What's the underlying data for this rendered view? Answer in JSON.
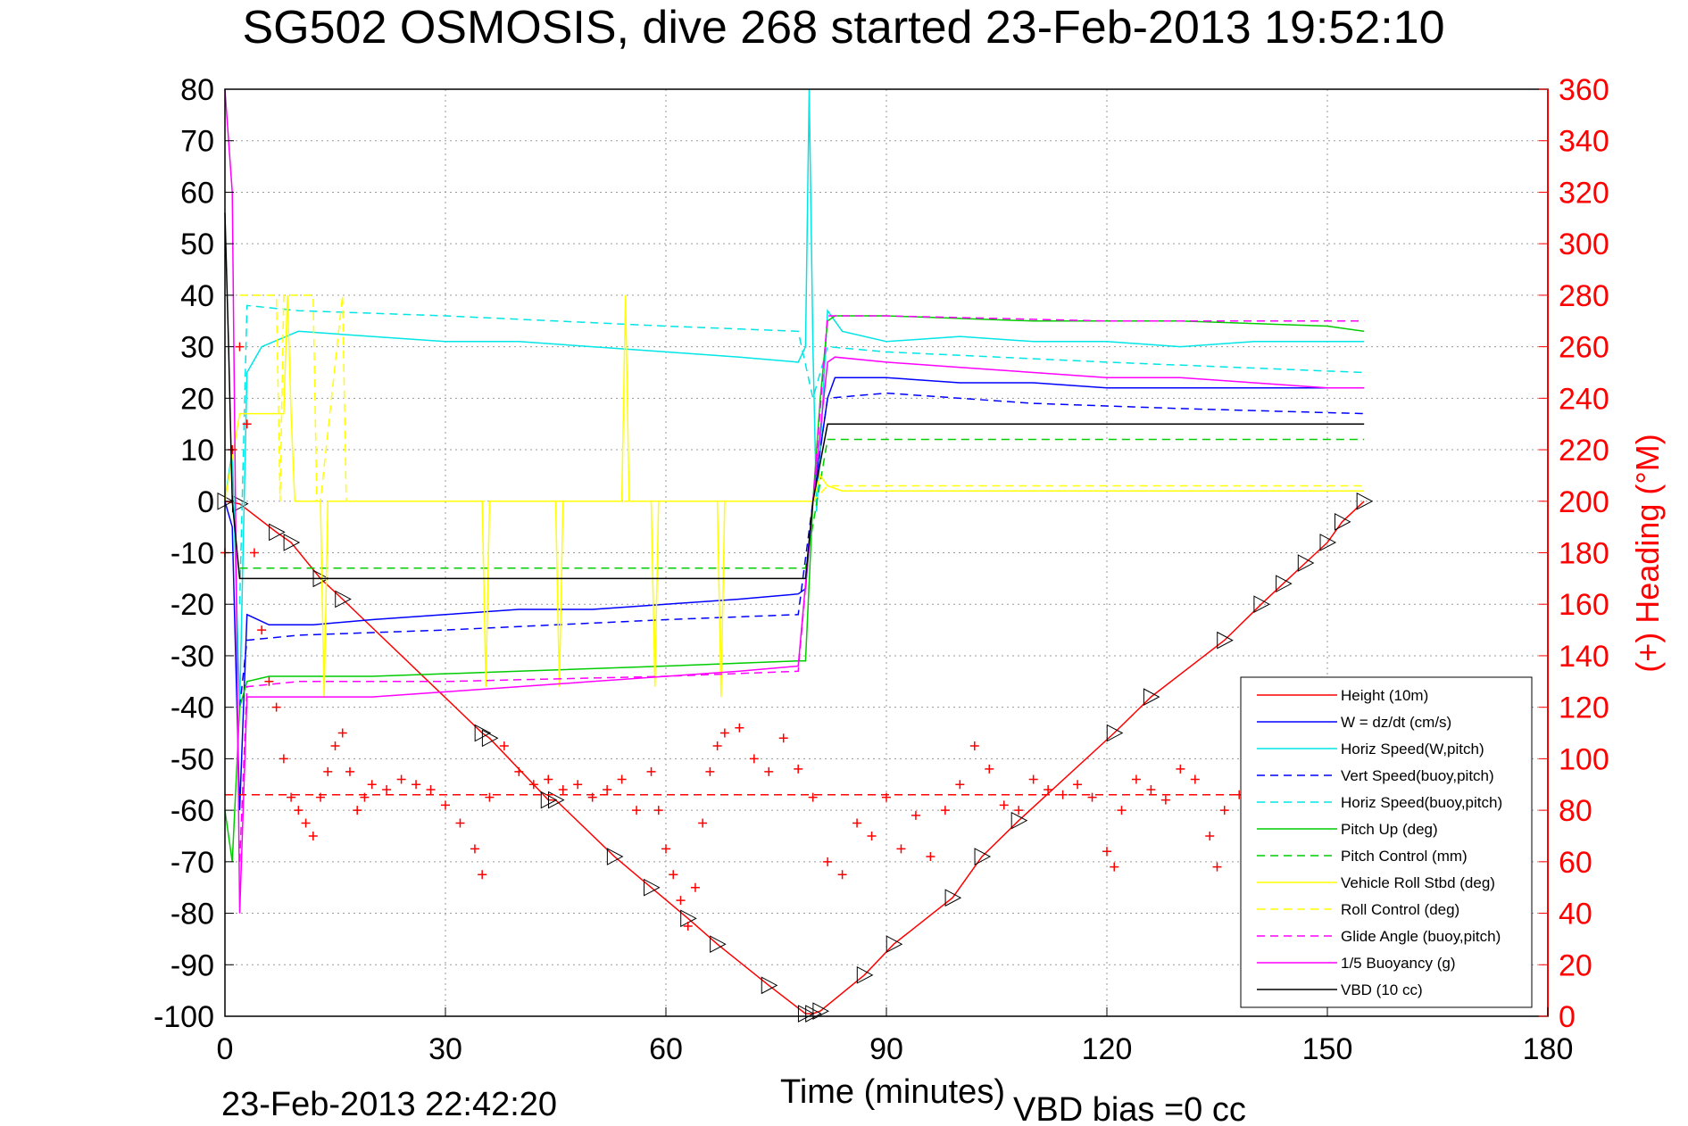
{
  "chart_data": {
    "type": "line",
    "title": "SG502 OSMOSIS, dive 268 started 23-Feb-2013 19:52:10",
    "xlabel": "Time (minutes)",
    "ylabel_right": "(+) Heading (°M)",
    "footer_left": "23-Feb-2013 22:42:20",
    "footer_right": "VBD bias =0 cc",
    "xlim": [
      0,
      180
    ],
    "ylim": [
      -100,
      80
    ],
    "ylim_right": [
      0,
      360
    ],
    "x_ticks": [
      "0",
      "30",
      "60",
      "90",
      "120",
      "150",
      "180"
    ],
    "y_ticks": [
      "80",
      "70",
      "60",
      "50",
      "40",
      "30",
      "20",
      "10",
      "0",
      "-10",
      "-20",
      "-30",
      "-40",
      "-50",
      "-60",
      "-70",
      "-80",
      "-90",
      "-100"
    ],
    "y_ticks_right": [
      "360",
      "340",
      "320",
      "300",
      "280",
      "260",
      "240",
      "220",
      "200",
      "180",
      "160",
      "140",
      "120",
      "100",
      "80",
      "60",
      "40",
      "20",
      "0"
    ],
    "grid": true,
    "legend_position": "bottom-right",
    "series": [
      {
        "name": "Height (10m)",
        "color": "#ff0000",
        "style": "solid",
        "marker": "triangle",
        "x": [
          0,
          2,
          7,
          9,
          13,
          16,
          35,
          36,
          44,
          45,
          53,
          58,
          63,
          67,
          74,
          79,
          80,
          81,
          87,
          91,
          99,
          103,
          108,
          121,
          126,
          136,
          141,
          144,
          147,
          150,
          152,
          155
        ],
        "y": [
          0,
          -0.5,
          -6,
          -8,
          -15,
          -19,
          -45,
          -46,
          -58,
          -58,
          -69,
          -75,
          -81,
          -86,
          -94,
          -99.5,
          -99.5,
          -99,
          -92,
          -86,
          -77,
          -69,
          -62,
          -45,
          -38,
          -27,
          -20,
          -16,
          -12,
          -8,
          -4,
          0
        ]
      },
      {
        "name": "W = dz/dt (cm/s)",
        "color": "#0000ff",
        "style": "solid",
        "x": [
          0,
          1,
          2,
          3,
          6,
          12,
          20,
          30,
          40,
          50,
          60,
          70,
          78,
          79,
          80,
          81,
          82,
          83,
          90,
          100,
          110,
          120,
          130,
          140,
          150,
          155
        ],
        "y": [
          0,
          -5,
          -60,
          -22,
          -24,
          -24,
          -23,
          -22,
          -21,
          -21,
          -20,
          -19,
          -18,
          -17,
          0,
          10,
          20,
          24,
          24,
          23,
          23,
          22,
          22,
          22,
          22,
          22
        ]
      },
      {
        "name": "Horiz Speed(W,pitch)",
        "color": "#00e5e5",
        "style": "solid",
        "x": [
          0,
          1,
          2,
          3,
          5,
          10,
          20,
          30,
          40,
          50,
          60,
          70,
          78,
          79,
          79.5,
          80,
          80.5,
          81,
          82,
          84,
          90,
          100,
          110,
          120,
          130,
          140,
          150,
          155
        ],
        "y": [
          0,
          10,
          -40,
          25,
          30,
          33,
          32,
          31,
          31,
          30,
          29,
          28,
          27,
          30,
          80,
          30,
          -2,
          10,
          37,
          33,
          31,
          32,
          31,
          31,
          30,
          31,
          31,
          31
        ]
      },
      {
        "name": "Vert Speed(buoy,pitch)",
        "color": "#0000ff",
        "style": "dashed",
        "x": [
          2,
          3,
          10,
          30,
          60,
          78,
          80,
          82,
          90,
          110,
          130,
          155
        ],
        "y": [
          -40,
          -27,
          -26,
          -25,
          -23,
          -22,
          0,
          20,
          21,
          19,
          18,
          17
        ]
      },
      {
        "name": "Horiz Speed(buoy,pitch)",
        "color": "#00e5e5",
        "style": "dashed",
        "x": [
          2,
          3,
          10,
          30,
          60,
          78,
          80,
          82,
          90,
          120,
          155
        ],
        "y": [
          -20,
          38,
          37,
          36,
          34,
          33,
          20,
          30,
          29,
          27,
          25
        ]
      },
      {
        "name": "Pitch Up (deg)",
        "color": "#00cc00",
        "style": "solid",
        "x": [
          0,
          1,
          2,
          3,
          6,
          20,
          40,
          60,
          78,
          79,
          80,
          81,
          82,
          83,
          90,
          110,
          130,
          150,
          155
        ],
        "y": [
          -60,
          -70,
          -40,
          -35,
          -34,
          -34,
          -33,
          -32,
          -31,
          -31,
          0,
          20,
          35,
          36,
          36,
          35,
          35,
          34,
          33
        ]
      },
      {
        "name": "Pitch Control (mm)",
        "color": "#00cc00",
        "style": "dashed",
        "x": [
          2,
          3,
          78,
          79,
          82,
          83,
          155
        ],
        "y": [
          -13,
          -13,
          -13,
          -13,
          12,
          12,
          12
        ]
      },
      {
        "name": "Vehicle Roll Stbd (deg)",
        "color": "#ffff00",
        "style": "solid",
        "x": [
          0,
          2,
          3,
          8,
          8.5,
          9,
          9.5,
          10,
          13,
          13.5,
          14,
          30,
          35,
          35.5,
          36,
          45,
          45.5,
          46,
          54,
          54.5,
          55,
          58,
          58.5,
          59,
          67,
          67.5,
          68,
          78,
          80,
          81,
          82,
          84,
          90,
          100,
          110,
          120,
          130,
          140,
          150,
          155
        ],
        "y": [
          0,
          17,
          17,
          17,
          40,
          17,
          0,
          0,
          0,
          -38,
          0,
          0,
          0,
          -36,
          0,
          0,
          -36,
          0,
          0,
          40,
          0,
          0,
          -36,
          0,
          0,
          -38,
          0,
          0,
          0,
          5,
          3,
          2,
          2,
          2,
          2,
          2,
          2,
          2,
          2,
          2
        ]
      },
      {
        "name": "Roll Control (deg)",
        "color": "#ffff00",
        "style": "dashed",
        "x": [
          2,
          3,
          7,
          7.5,
          8,
          12,
          12.5,
          13,
          16,
          16.5,
          17,
          30,
          60,
          78,
          80,
          82,
          90,
          120,
          155
        ],
        "y": [
          40,
          40,
          40,
          0,
          40,
          40,
          0,
          0,
          40,
          0,
          0,
          0,
          0,
          0,
          0,
          3,
          3,
          3,
          3
        ]
      },
      {
        "name": "Glide Angle (buoy,pitch)",
        "color": "#ff00ff",
        "style": "dashed",
        "x": [
          2,
          3,
          10,
          30,
          60,
          78,
          80,
          82,
          90,
          120,
          155
        ],
        "y": [
          -70,
          -36,
          -35,
          -35,
          -34,
          -33,
          0,
          36,
          36,
          35,
          35
        ]
      },
      {
        "name": "1/5 Buoyancy (g)",
        "color": "#ff00ff",
        "style": "solid",
        "x": [
          0,
          1,
          2,
          3,
          10,
          20,
          30,
          40,
          50,
          60,
          70,
          78,
          80,
          82,
          83,
          90,
          100,
          110,
          120,
          130,
          140,
          150,
          155
        ],
        "y": [
          80,
          60,
          -80,
          -38,
          -38,
          -38,
          -37,
          -36,
          -35,
          -34,
          -33,
          -32,
          0,
          27,
          28,
          27,
          26,
          25,
          24,
          24,
          23,
          22,
          22
        ]
      },
      {
        "name": "VBD (10 cc)",
        "color": "#000000",
        "style": "solid",
        "x": [
          0,
          0.5,
          1,
          2,
          3,
          78,
          79,
          80,
          82,
          83,
          90,
          120,
          155
        ],
        "y": [
          56,
          30,
          0,
          -15,
          -15,
          -15,
          -15,
          0,
          15,
          15,
          15,
          15,
          15
        ]
      },
      {
        "color": "#ff0000",
        "style": "dashed",
        "axis": "right",
        "x": [
          0,
          140
        ],
        "y": [
          86,
          86
        ]
      },
      {
        "color": "#ff0000",
        "style": "plus",
        "axis": "right",
        "x": [
          0,
          1,
          2,
          3,
          4,
          5,
          6,
          7,
          8,
          9,
          10,
          11,
          12,
          13,
          14,
          15,
          16,
          17,
          18,
          19,
          20,
          22,
          24,
          26,
          28,
          30,
          32,
          34,
          35,
          36,
          38,
          40,
          42,
          44,
          46,
          48,
          50,
          52,
          54,
          56,
          58,
          59,
          60,
          61,
          62,
          63,
          64,
          65,
          66,
          67,
          68,
          70,
          72,
          74,
          76,
          78,
          80,
          82,
          84,
          86,
          88,
          90,
          92,
          94,
          96,
          98,
          100,
          102,
          104,
          106,
          108,
          110,
          112,
          114,
          116,
          118,
          120,
          121,
          122,
          124,
          126,
          128,
          130,
          132,
          134,
          135,
          136,
          138,
          140
        ],
        "y": [
          180,
          220,
          260,
          230,
          180,
          150,
          130,
          120,
          100,
          85,
          80,
          75,
          70,
          85,
          95,
          105,
          110,
          95,
          80,
          85,
          90,
          88,
          92,
          90,
          88,
          82,
          75,
          65,
          55,
          85,
          105,
          95,
          90,
          92,
          88,
          90,
          85,
          88,
          92,
          80,
          95,
          80,
          65,
          55,
          45,
          35,
          50,
          75,
          95,
          105,
          110,
          112,
          100,
          95,
          108,
          96,
          85,
          60,
          55,
          75,
          70,
          85,
          65,
          78,
          62,
          80,
          90,
          105,
          96,
          82,
          80,
          92,
          88,
          86,
          90,
          85,
          64,
          58,
          80,
          92,
          88,
          84,
          96,
          92,
          70,
          58,
          80,
          86,
          88
        ]
      }
    ]
  }
}
